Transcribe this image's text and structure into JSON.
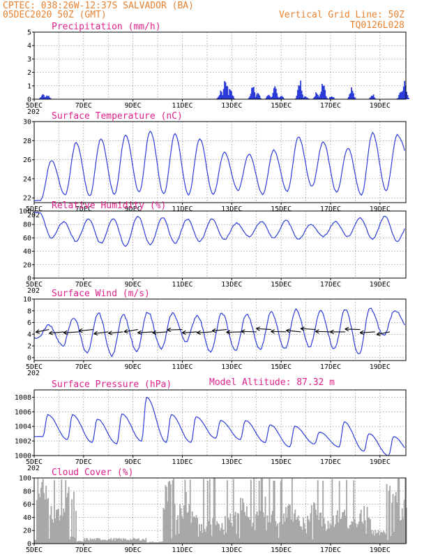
{
  "header": {
    "line1": "CPTEC:  038:26W-12:37S  SALVADOR (BA)",
    "line2": "05DEC2020 50Z (GMT)",
    "grid_note": "Vertical Grid Line: 50Z",
    "code": "TQ0126L028",
    "model_altitude": "Model Altitude: 87.32 m"
  },
  "colors": {
    "header": "#e8802e",
    "title": "#e0208a",
    "series": "#2b3bd9",
    "cloud": "#a8a8a8",
    "axis": "#000000"
  },
  "x_axis": {
    "range_days": [
      0,
      15.05
    ],
    "ticks": [
      {
        "day": 0,
        "label": "5DEC"
      },
      {
        "day": 2,
        "label": "7DEC"
      },
      {
        "day": 4,
        "label": "9DEC"
      },
      {
        "day": 6,
        "label": "11DEC"
      },
      {
        "day": 8,
        "label": "13DEC"
      },
      {
        "day": 10,
        "label": "15DEC"
      },
      {
        "day": 12,
        "label": "17DEC"
      },
      {
        "day": 14,
        "label": "19DEC"
      }
    ],
    "year_fragment": "202"
  },
  "chart_data": [
    {
      "id": "precip",
      "type": "bar",
      "title": "Precipitation (mm/h)",
      "ylim": [
        0,
        5
      ],
      "yticks": [
        0,
        1,
        2,
        3,
        4,
        5
      ],
      "events": [
        {
          "day": 0.35,
          "peak": 0.45
        },
        {
          "day": 0.55,
          "peak": 0.35
        },
        {
          "day": 7.55,
          "peak": 0.6
        },
        {
          "day": 7.75,
          "peak": 1.7
        },
        {
          "day": 7.95,
          "peak": 0.9
        },
        {
          "day": 8.85,
          "peak": 1.1
        },
        {
          "day": 9.05,
          "peak": 0.5
        },
        {
          "day": 9.5,
          "peak": 0.4
        },
        {
          "day": 9.75,
          "peak": 0.9
        },
        {
          "day": 10.0,
          "peak": 0.3
        },
        {
          "day": 10.75,
          "peak": 1.5
        },
        {
          "day": 11.0,
          "peak": 0.25
        },
        {
          "day": 11.45,
          "peak": 0.6
        },
        {
          "day": 11.7,
          "peak": 1.6
        },
        {
          "day": 12.05,
          "peak": 0.3
        },
        {
          "day": 12.85,
          "peak": 0.9
        },
        {
          "day": 13.7,
          "peak": 0.4
        },
        {
          "day": 14.85,
          "peak": 0.7
        },
        {
          "day": 15.0,
          "peak": 1.3
        }
      ]
    },
    {
      "id": "temp",
      "type": "line",
      "title": "Surface Temperature (nC)",
      "ylim": [
        21.5,
        30
      ],
      "yticks": [
        22,
        24,
        26,
        28,
        30
      ],
      "daily": [
        {
          "min": 21.7,
          "max": 25.9
        },
        {
          "min": 22.3,
          "max": 27.8
        },
        {
          "min": 22.2,
          "max": 28.2
        },
        {
          "min": 22.4,
          "max": 28.6
        },
        {
          "min": 22.6,
          "max": 29.0
        },
        {
          "min": 22.4,
          "max": 28.7
        },
        {
          "min": 22.3,
          "max": 28.2
        },
        {
          "min": 22.4,
          "max": 26.8
        },
        {
          "min": 22.8,
          "max": 26.6
        },
        {
          "min": 22.4,
          "max": 27.0
        },
        {
          "min": 22.7,
          "max": 28.4
        },
        {
          "min": 23.2,
          "max": 27.9
        },
        {
          "min": 22.6,
          "max": 27.2
        },
        {
          "min": 22.3,
          "max": 28.8
        },
        {
          "min": 22.8,
          "max": 28.6
        },
        {
          "min": 25.8,
          "max": 25.8
        }
      ]
    },
    {
      "id": "rh",
      "type": "line",
      "title": "Relative Humidity (%)",
      "ylim": [
        0,
        100
      ],
      "yticks": [
        0,
        20,
        40,
        60,
        80,
        100
      ],
      "daily": [
        {
          "min": 60,
          "max": 98
        },
        {
          "min": 55,
          "max": 84
        },
        {
          "min": 52,
          "max": 88
        },
        {
          "min": 48,
          "max": 89
        },
        {
          "min": 50,
          "max": 92
        },
        {
          "min": 52,
          "max": 90
        },
        {
          "min": 55,
          "max": 88
        },
        {
          "min": 58,
          "max": 88
        },
        {
          "min": 62,
          "max": 82
        },
        {
          "min": 60,
          "max": 84
        },
        {
          "min": 58,
          "max": 86
        },
        {
          "min": 62,
          "max": 80
        },
        {
          "min": 62,
          "max": 84
        },
        {
          "min": 58,
          "max": 90
        },
        {
          "min": 55,
          "max": 92
        },
        {
          "min": 80,
          "max": 84
        }
      ]
    },
    {
      "id": "wind",
      "type": "line",
      "title": "Surface Wind (m/s)",
      "ylim": [
        -0.5,
        10
      ],
      "yticks": [
        0,
        2,
        4,
        6,
        8,
        10
      ],
      "daily": [
        {
          "min": 3.4,
          "max": 5.6
        },
        {
          "min": 2.0,
          "max": 6.8
        },
        {
          "min": 0.8,
          "max": 7.6
        },
        {
          "min": 0.3,
          "max": 7.4
        },
        {
          "min": 1.0,
          "max": 7.8
        },
        {
          "min": 1.5,
          "max": 7.6
        },
        {
          "min": 2.8,
          "max": 7.2
        },
        {
          "min": 1.0,
          "max": 7.6
        },
        {
          "min": 1.2,
          "max": 7.4
        },
        {
          "min": 1.4,
          "max": 7.8
        },
        {
          "min": 1.5,
          "max": 8.2
        },
        {
          "min": 1.8,
          "max": 8.0
        },
        {
          "min": 1.5,
          "max": 8.3
        },
        {
          "min": 0.5,
          "max": 8.4
        },
        {
          "min": 3.8,
          "max": 8.1
        },
        {
          "min": 5.0,
          "max": 5.3
        }
      ],
      "vectors_dir_deg": [
        60,
        75,
        80,
        75,
        70,
        75,
        65,
        80,
        80,
        85,
        80,
        80,
        75,
        85,
        95,
        100,
        95,
        105,
        100,
        95,
        90,
        95,
        80,
        60
      ]
    },
    {
      "id": "pres",
      "type": "line",
      "title": "Surface Pressure (hPa)",
      "ylim": [
        1000,
        1009
      ],
      "yticks": [
        1000,
        1002,
        1004,
        1006,
        1008
      ],
      "daily": [
        {
          "min": 1002.6,
          "max": 1005.6
        },
        {
          "min": 1002.2,
          "max": 1005.6
        },
        {
          "min": 1001.8,
          "max": 1005.0
        },
        {
          "min": 1001.6,
          "max": 1005.7
        },
        {
          "min": 1002.0,
          "max": 1008.0
        },
        {
          "min": 1001.8,
          "max": 1005.6
        },
        {
          "min": 1001.8,
          "max": 1005.3
        },
        {
          "min": 1002.4,
          "max": 1004.8
        },
        {
          "min": 1002.2,
          "max": 1004.8
        },
        {
          "min": 1001.8,
          "max": 1004.2
        },
        {
          "min": 1001.2,
          "max": 1004.0
        },
        {
          "min": 1001.6,
          "max": 1003.2
        },
        {
          "min": 1001.2,
          "max": 1004.6
        },
        {
          "min": 1000.6,
          "max": 1003.0
        },
        {
          "min": 1000.0,
          "max": 1002.6
        },
        {
          "min": 1000.0,
          "max": 1000.4
        }
      ]
    },
    {
      "id": "cloud",
      "type": "area",
      "title": "Cloud Cover (%)",
      "ylim": [
        0,
        100
      ],
      "yticks": [
        0,
        20,
        40,
        60,
        80,
        100
      ],
      "segments": [
        {
          "from": 0,
          "to": 1.7,
          "level": 80
        },
        {
          "from": 1.7,
          "to": 2.0,
          "level": 4
        },
        {
          "from": 2.0,
          "to": 3.5,
          "level": 8
        },
        {
          "from": 3.5,
          "to": 4.5,
          "level": 8
        },
        {
          "from": 4.5,
          "to": 5.2,
          "level": 3
        },
        {
          "from": 5.2,
          "to": 6.3,
          "level": 85
        },
        {
          "from": 6.3,
          "to": 7.7,
          "level": 45
        },
        {
          "from": 7.7,
          "to": 9.4,
          "level": 65
        },
        {
          "from": 9.4,
          "to": 11.4,
          "level": 55
        },
        {
          "from": 11.4,
          "to": 13.6,
          "level": 50
        },
        {
          "from": 13.6,
          "to": 14.2,
          "level": 20
        },
        {
          "from": 14.2,
          "to": 15.05,
          "level": 88
        }
      ]
    }
  ]
}
